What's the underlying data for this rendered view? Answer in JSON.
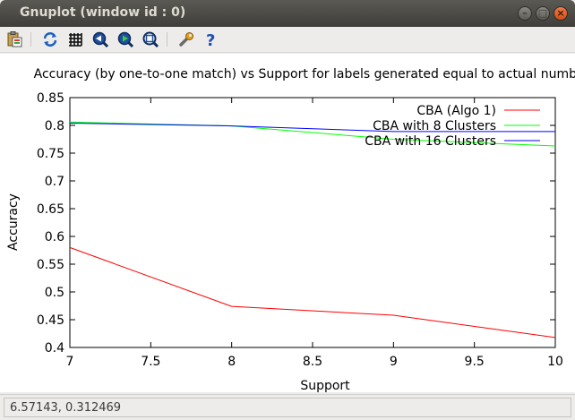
{
  "window": {
    "title": "Gnuplot (window id : 0)"
  },
  "window_controls": {
    "close": "×",
    "minimize": "–",
    "maximize": "□"
  },
  "toolbar": {
    "icons": [
      "copy-clipboard-icon",
      "replot-icon",
      "grid-icon",
      "zoom-previous-icon",
      "zoom-next-icon",
      "autoscale-icon",
      "settings-icon",
      "help-icon"
    ]
  },
  "status": {
    "coords": "6.57143,  0.312469"
  },
  "chart_data": {
    "type": "line",
    "title": "Accuracy (by one-to-one match) vs Support for labels generated equal to actual number",
    "xlabel": "Support",
    "ylabel": "Accuracy",
    "xlim": [
      7,
      10
    ],
    "ylim": [
      0.4,
      0.85
    ],
    "xticks": [
      "7",
      "7.5",
      "8",
      "8.5",
      "9",
      "9.5",
      "10"
    ],
    "yticks": [
      "0.4",
      "0.45",
      "0.5",
      "0.55",
      "0.6",
      "0.65",
      "0.7",
      "0.75",
      "0.8",
      "0.85"
    ],
    "legend_position": "top-right",
    "x": [
      7,
      8,
      9,
      10
    ],
    "series": [
      {
        "name": "CBA (Algo 1)",
        "color": "#ff0000",
        "values": [
          0.58,
          0.474,
          0.458,
          0.418
        ]
      },
      {
        "name": "CBA with 8 Clusters",
        "color": "#00ff00",
        "values": [
          0.806,
          0.799,
          0.775,
          0.763
        ]
      },
      {
        "name": "CBA with 16 Clusters",
        "color": "#0000ff",
        "values": [
          0.804,
          0.799,
          0.789,
          0.789
        ]
      }
    ]
  }
}
